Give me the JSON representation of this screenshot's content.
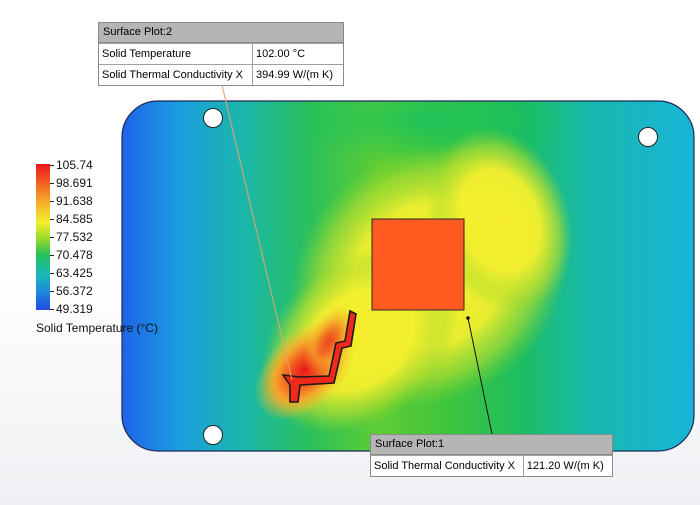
{
  "legend": {
    "labels": [
      "105.74",
      "98.691",
      "91.638",
      "84.585",
      "77.532",
      "70.478",
      "63.425",
      "56.372",
      "49.319"
    ],
    "title": "Solid Temperature (°C)"
  },
  "probe2": {
    "title": "Surface Plot:2",
    "rows": [
      {
        "name": "Solid Temperature",
        "value": "102.00 °C"
      },
      {
        "name": "Solid Thermal Conductivity X",
        "value": "394.99 W/(m K)"
      }
    ]
  },
  "probe1": {
    "title": "Surface Plot:1",
    "rows": [
      {
        "name": "Solid Thermal Conductivity X",
        "value": "121.20 W/(m K)"
      }
    ]
  },
  "colors": {
    "hot": "#e8171b",
    "cold": "#2348e4",
    "component": "#ff5a1f",
    "leader": "#f0a070"
  }
}
